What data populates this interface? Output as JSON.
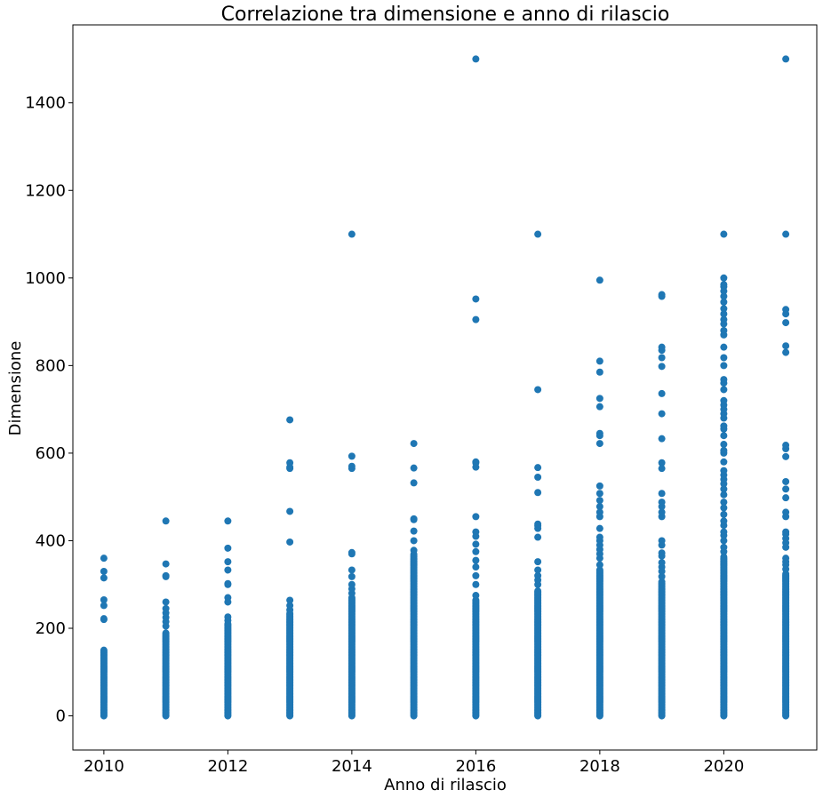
{
  "chart_data": {
    "type": "scatter",
    "title": "Correlazione tra dimensione e anno di rilascio",
    "xlabel": "Anno di rilascio",
    "ylabel": "Dimensione",
    "xlim": [
      2009.5,
      2021.5
    ],
    "ylim": [
      -78,
      1578
    ],
    "xticks": [
      2010,
      2012,
      2014,
      2016,
      2018,
      2020
    ],
    "yticks": [
      0,
      200,
      400,
      600,
      800,
      1000,
      1200,
      1400
    ],
    "grid": false,
    "legend": "none",
    "marker_color": "#1f77b4",
    "columns_note_free": true,
    "by_year": [
      {
        "x": 2010,
        "dense_max": 150,
        "outliers": [
          220,
          222,
          252,
          265,
          315,
          330,
          360
        ]
      },
      {
        "x": 2011,
        "dense_max": 190,
        "outliers": [
          205,
          215,
          225,
          235,
          245,
          260,
          318,
          320,
          347,
          445
        ]
      },
      {
        "x": 2012,
        "dense_max": 210,
        "outliers": [
          218,
          226,
          260,
          270,
          300,
          302,
          333,
          352,
          383,
          445
        ]
      },
      {
        "x": 2013,
        "dense_max": 235,
        "outliers": [
          242,
          252,
          264,
          397,
          467,
          565,
          568,
          578,
          676
        ]
      },
      {
        "x": 2014,
        "dense_max": 272,
        "outliers": [
          280,
          290,
          300,
          318,
          333,
          370,
          373,
          565,
          570,
          593,
          1100
        ]
      },
      {
        "x": 2015,
        "dense_max": 370,
        "outliers": [
          378,
          400,
          422,
          448,
          450,
          532,
          566,
          622
        ]
      },
      {
        "x": 2016,
        "dense_max": 265,
        "outliers": [
          275,
          300,
          320,
          340,
          355,
          375,
          392,
          410,
          420,
          455,
          568,
          578,
          580,
          905,
          952,
          1500
        ]
      },
      {
        "x": 2017,
        "dense_max": 285,
        "outliers": [
          300,
          310,
          320,
          333,
          352,
          408,
          428,
          434,
          438,
          510,
          545,
          567,
          745,
          1100
        ]
      },
      {
        "x": 2018,
        "dense_max": 335,
        "outliers": [
          345,
          360,
          370,
          380,
          390,
          400,
          408,
          428,
          455,
          465,
          478,
          492,
          508,
          525,
          622,
          640,
          645,
          706,
          725,
          785,
          810,
          995
        ]
      },
      {
        "x": 2019,
        "dense_max": 308,
        "outliers": [
          318,
          330,
          340,
          350,
          365,
          372,
          390,
          400,
          455,
          465,
          478,
          488,
          508,
          565,
          578,
          633,
          690,
          736,
          798,
          818,
          835,
          842,
          958,
          962
        ]
      },
      {
        "x": 2020,
        "dense_max": 365,
        "outliers": [
          375,
          385,
          400,
          412,
          420,
          435,
          445,
          460,
          475,
          488,
          505,
          518,
          530,
          540,
          550,
          560,
          580,
          600,
          606,
          620,
          640,
          655,
          662,
          680,
          690,
          700,
          710,
          720,
          745,
          760,
          768,
          800,
          818,
          842,
          870,
          880,
          895,
          905,
          918,
          930,
          945,
          958,
          970,
          980,
          985,
          1000,
          1100
        ]
      },
      {
        "x": 2021,
        "dense_max": 325,
        "outliers": [
          335,
          345,
          352,
          360,
          385,
          395,
          405,
          415,
          420,
          455,
          465,
          498,
          518,
          535,
          592,
          610,
          618,
          830,
          845,
          898,
          918,
          928,
          1100,
          1500
        ]
      }
    ]
  }
}
